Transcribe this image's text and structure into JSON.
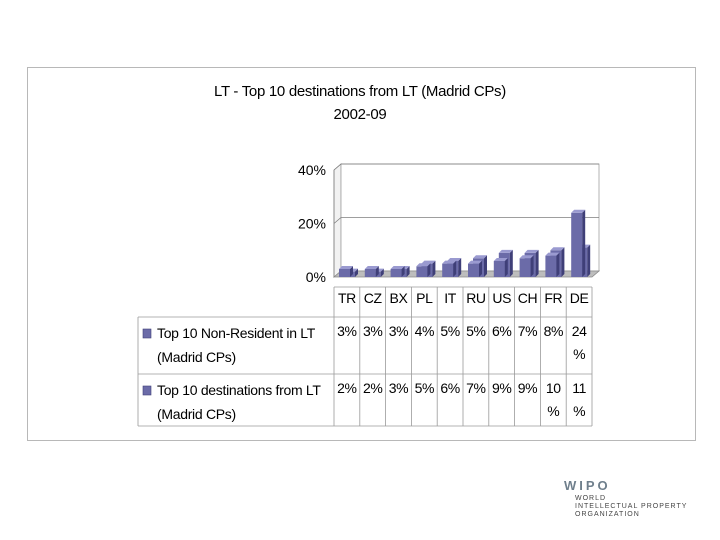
{
  "chart_data": {
    "type": "bar",
    "title": "LT - Top 10 destinations from LT (Madrid CPs)",
    "subtitle": "2002-09",
    "categories": [
      "TR",
      "CZ",
      "BX",
      "PL",
      "IT",
      "RU",
      "US",
      "CH",
      "FR",
      "DE"
    ],
    "series": [
      {
        "name": "Top 10 Non-Resident in LT (Madrid CPs)",
        "name_lines": [
          "Top 10 Non-Resident in LT",
          "(Madrid CPs)"
        ],
        "values": [
          3,
          3,
          3,
          4,
          5,
          5,
          6,
          7,
          8,
          24
        ],
        "labels": [
          [
            "3%"
          ],
          [
            "3%"
          ],
          [
            "3%"
          ],
          [
            "4%"
          ],
          [
            "5%"
          ],
          [
            "5%"
          ],
          [
            "6%"
          ],
          [
            "7%"
          ],
          [
            "8%"
          ],
          [
            "24",
            "%"
          ]
        ]
      },
      {
        "name": "Top 10 destinations from LT (Madrid CPs)",
        "name_lines": [
          "Top 10 destinations from LT",
          "(Madrid CPs)"
        ],
        "values": [
          2,
          2,
          3,
          5,
          6,
          7,
          9,
          9,
          10,
          11
        ],
        "labels": [
          [
            "2%"
          ],
          [
            "2%"
          ],
          [
            "3%"
          ],
          [
            "5%"
          ],
          [
            "6%"
          ],
          [
            "7%"
          ],
          [
            "9%"
          ],
          [
            "9%"
          ],
          [
            "10",
            "%"
          ],
          [
            "11",
            "%"
          ]
        ]
      }
    ],
    "yticks": [
      "0%",
      "20%",
      "40%"
    ],
    "ylim": [
      0,
      40
    ],
    "grid": true,
    "legend": "data-table",
    "colors": {
      "bar_front": "#6b6ba8",
      "bar_side": "#3f3f78",
      "bar_top": "#9a9ad0",
      "wall": "#ffffff",
      "floor": "#bdbdbd",
      "gridline": "#7f7f7f",
      "table_border": "#9a9a9a"
    }
  },
  "logo": {
    "name": "WIPO",
    "sub_lines": [
      "WORLD",
      "INTELLECTUAL PROPERTY",
      "ORGANIZATION"
    ]
  }
}
